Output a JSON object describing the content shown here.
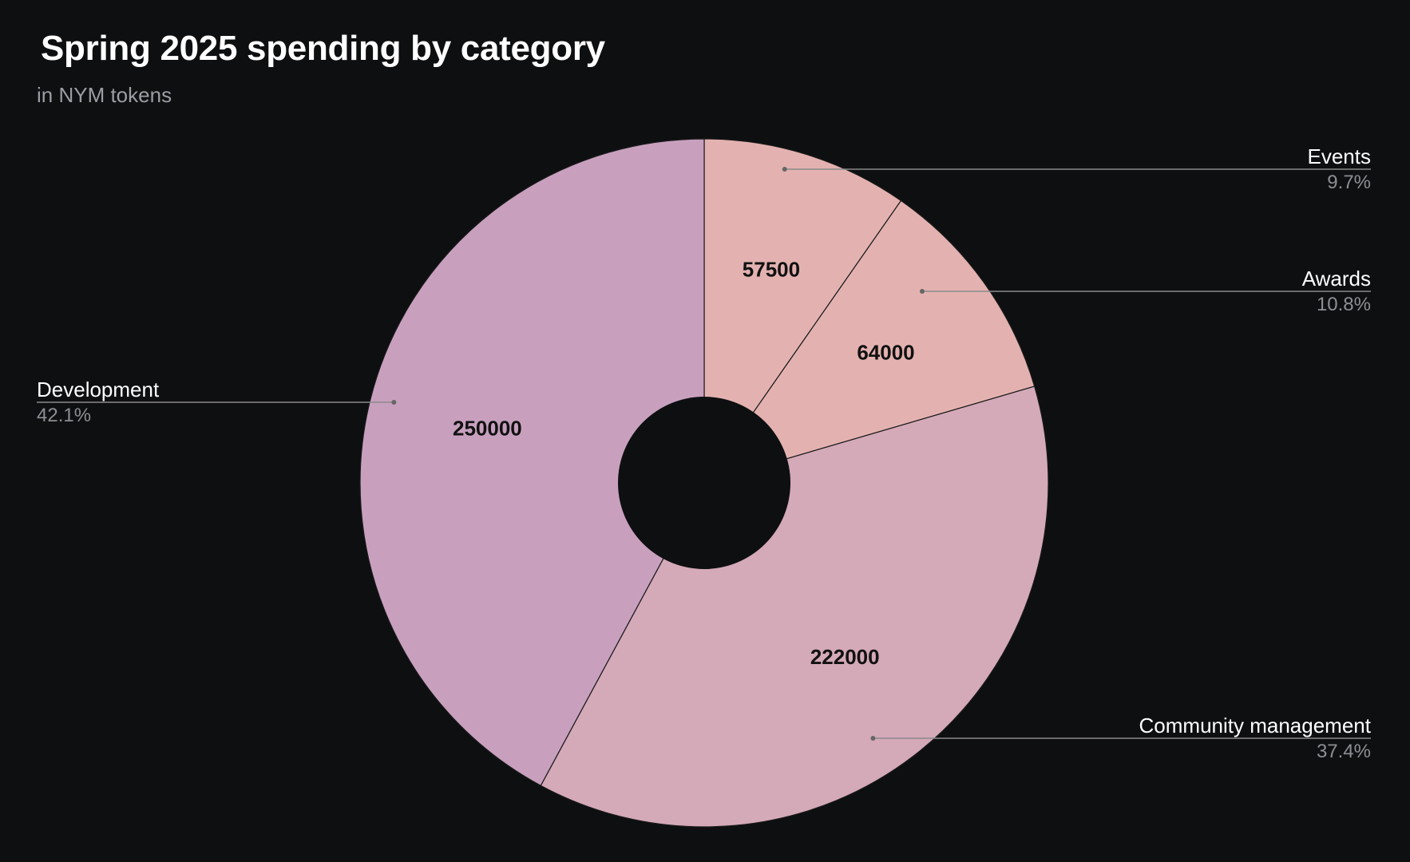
{
  "chart_data": {
    "type": "pie",
    "title": "Spring 2025 spending by category",
    "subtitle": "in NYM tokens",
    "donut": true,
    "slices": [
      {
        "label": "Events",
        "value": 57500,
        "percent": "9.7%",
        "color": "#e3b2b0"
      },
      {
        "label": "Awards",
        "value": 64000,
        "percent": "10.8%",
        "color": "#e3b2b0"
      },
      {
        "label": "Community management",
        "value": 222000,
        "percent": "37.4%",
        "color": "#d4a9b8"
      },
      {
        "label": "Development",
        "value": 250000,
        "percent": "42.1%",
        "color": "#c8a0be"
      }
    ],
    "background": "#0e0f11"
  }
}
